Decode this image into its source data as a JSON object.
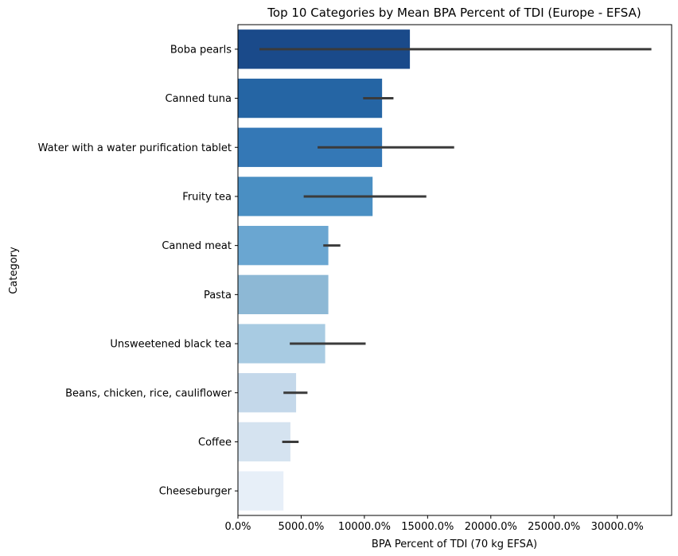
{
  "chart_data": {
    "type": "bar",
    "orientation": "horizontal",
    "title": "Top 10 Categories by Mean BPA Percent of TDI (Europe - EFSA)",
    "xlabel": "BPA Percent of TDI (70 kg EFSA)",
    "ylabel": "Category",
    "xlim": [
      0,
      34300
    ],
    "xticks": [
      0,
      5000,
      10000,
      15000,
      20000,
      25000,
      30000
    ],
    "xtick_labels": [
      "0.0%",
      "5000.0%",
      "10000.0%",
      "15000.0%",
      "20000.0%",
      "25000.0%",
      "30000.0%"
    ],
    "grid": false,
    "legend": "none",
    "categories": [
      "Boba pearls",
      "Canned tuna",
      "Water with a water purification tablet",
      "Fruity tea",
      "Canned meat",
      "Pasta",
      "Unsweetened black tea",
      "Beans, chicken, rice, cauliflower",
      "Coffee",
      "Cheeseburger"
    ],
    "values": [
      13600,
      11400,
      11400,
      10650,
      7150,
      7150,
      6900,
      4600,
      4150,
      3600
    ],
    "error_low": [
      1700,
      9900,
      6300,
      5200,
      6750,
      null,
      4100,
      3600,
      3500,
      null
    ],
    "error_high": [
      32700,
      12300,
      17100,
      14900,
      8100,
      null,
      10100,
      5500,
      4800,
      null
    ],
    "colors": [
      "#1a4a8a",
      "#2565a4",
      "#3478b6",
      "#4a8fc3",
      "#6aa6d1",
      "#8db8d5",
      "#a8cbe2",
      "#c4d8ea",
      "#d5e3f0",
      "#e7eff8"
    ],
    "error_color": "#3b3b3b"
  }
}
